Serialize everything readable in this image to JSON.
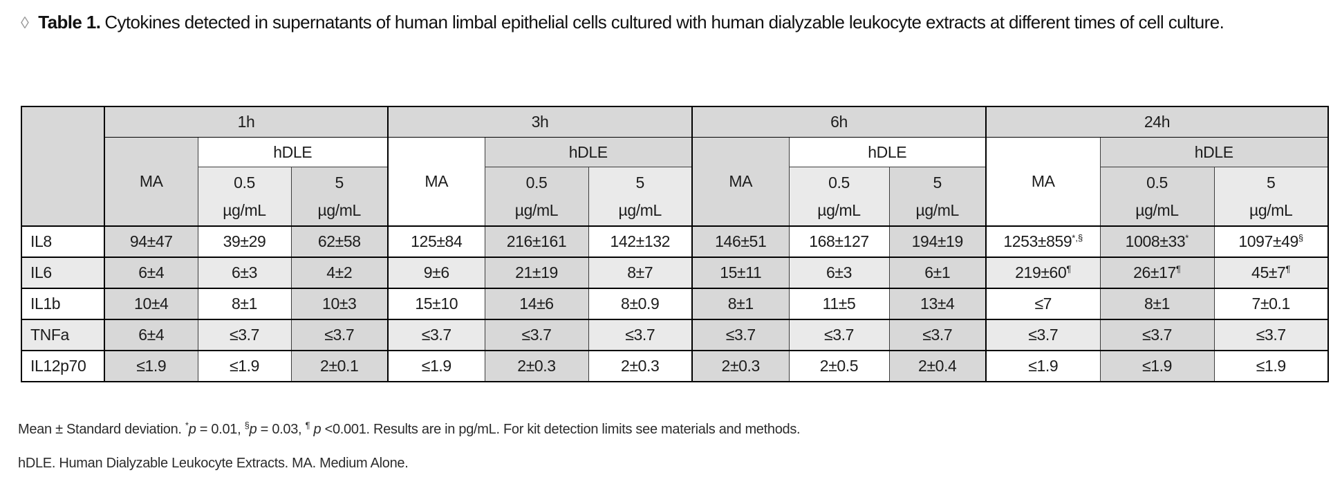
{
  "title": {
    "marker": "◊",
    "label": "Table 1.",
    "text": "Cytokines detected in supernatants of human limbal epithelial cells cultured with human dialyzable leukocyte extracts at different times of cell culture."
  },
  "table": {
    "ma_label": "MA",
    "hdle_label": "hDLE",
    "unit_label": "µg/mL",
    "colors": {
      "grey": "#d8d8d8",
      "light": "#eaeaea",
      "white": "#ffffff"
    },
    "groups": [
      {
        "time": "1h",
        "doses": [
          "0.5",
          "5"
        ],
        "bg": {
          "ma": "#d8d8d8",
          "hdle": "#ffffff",
          "dose1": "#eaeaea",
          "dose2": "#d8d8d8"
        }
      },
      {
        "time": "3h",
        "doses": [
          "0.5",
          "5"
        ],
        "bg": {
          "ma": "#ffffff",
          "hdle": "#d8d8d8",
          "dose1": "#d8d8d8",
          "dose2": "#eaeaea"
        }
      },
      {
        "time": "6h",
        "doses": [
          "0.5",
          "5"
        ],
        "bg": {
          "ma": "#d8d8d8",
          "hdle": "#ffffff",
          "dose1": "#eaeaea",
          "dose2": "#d8d8d8"
        }
      },
      {
        "time": "24h",
        "doses": [
          "0.5",
          "5"
        ],
        "bg": {
          "ma": "#ffffff",
          "hdle": "#d8d8d8",
          "dose1": "#d8d8d8",
          "dose2": "#eaeaea"
        }
      }
    ],
    "rows": [
      {
        "label": "IL8",
        "cells": [
          {
            "v": "94±47"
          },
          {
            "v": "39±29"
          },
          {
            "v": "62±58"
          },
          {
            "v": "125±84"
          },
          {
            "v": "216±161"
          },
          {
            "v": "142±132"
          },
          {
            "v": "146±51"
          },
          {
            "v": "168±127"
          },
          {
            "v": "194±19"
          },
          {
            "v": "1253±859",
            "sup": "*,§"
          },
          {
            "v": "1008±33",
            "sup": "*"
          },
          {
            "v": "1097±49",
            "sup": "§"
          }
        ]
      },
      {
        "label": "IL6",
        "cells": [
          {
            "v": "6±4"
          },
          {
            "v": "6±3"
          },
          {
            "v": "4±2"
          },
          {
            "v": "9±6"
          },
          {
            "v": "21±19"
          },
          {
            "v": "8±7"
          },
          {
            "v": "15±11"
          },
          {
            "v": "6±3"
          },
          {
            "v": "6±1"
          },
          {
            "v": "219±60",
            "sup": "¶"
          },
          {
            "v": "26±17",
            "sup": "¶"
          },
          {
            "v": "45±7",
            "sup": "¶"
          }
        ]
      },
      {
        "label": "IL1b",
        "cells": [
          {
            "v": "10±4"
          },
          {
            "v": "8±1"
          },
          {
            "v": "10±3"
          },
          {
            "v": "15±10"
          },
          {
            "v": "14±6"
          },
          {
            "v": "8±0.9"
          },
          {
            "v": "8±1"
          },
          {
            "v": "11±5"
          },
          {
            "v": "13±4"
          },
          {
            "v": "≤7"
          },
          {
            "v": "8±1"
          },
          {
            "v": "7±0.1"
          }
        ]
      },
      {
        "label": "TNFa",
        "cells": [
          {
            "v": "6±4"
          },
          {
            "v": "≤3.7"
          },
          {
            "v": "≤3.7"
          },
          {
            "v": "≤3.7"
          },
          {
            "v": "≤3.7"
          },
          {
            "v": "≤3.7"
          },
          {
            "v": "≤3.7"
          },
          {
            "v": "≤3.7"
          },
          {
            "v": "≤3.7"
          },
          {
            "v": "≤3.7"
          },
          {
            "v": "≤3.7"
          },
          {
            "v": "≤3.7"
          }
        ]
      },
      {
        "label": "IL12p70",
        "cells": [
          {
            "v": "≤1.9"
          },
          {
            "v": "≤1.9"
          },
          {
            "v": "2±0.1"
          },
          {
            "v": "≤1.9"
          },
          {
            "v": "2±0.3"
          },
          {
            "v": "2±0.3"
          },
          {
            "v": "2±0.3"
          },
          {
            "v": "2±0.5"
          },
          {
            "v": "2±0.4"
          },
          {
            "v": "≤1.9"
          },
          {
            "v": "≤1.9"
          },
          {
            "v": "≤1.9"
          }
        ]
      }
    ]
  },
  "footnotes": {
    "stats_segments": [
      {
        "t": "Mean ± Standard deviation. "
      },
      {
        "t": "*",
        "sup": true
      },
      {
        "t": "p",
        "i": true
      },
      {
        "t": " = 0.01, "
      },
      {
        "t": "§",
        "sup": true
      },
      {
        "t": "p",
        "i": true
      },
      {
        "t": " = 0.03, "
      },
      {
        "t": "¶",
        "sup": true
      },
      {
        "t": " "
      },
      {
        "t": "p",
        "i": true
      },
      {
        "t": " <0.001. Results are in pg/mL. For kit detection limits see materials and methods."
      }
    ],
    "abbrev": "hDLE. Human Dialyzable Leukocyte Extracts. MA. Medium Alone."
  }
}
